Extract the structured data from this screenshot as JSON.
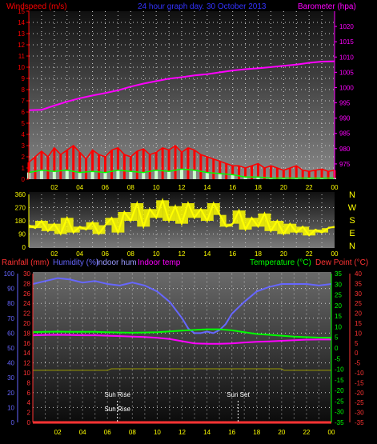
{
  "header": {
    "windspeed_label": "Windspeed (m/s)",
    "date_label": "24 hour graph day. 30 October 2013",
    "barometer_label": "Barometer (hpa)"
  },
  "colors": {
    "wind_red": "#ff0000",
    "gust": "#00ff00",
    "wind_light": "#ccffcc",
    "baro": "#ff00ff",
    "direction": "#ffff00",
    "rain": "#ff3333",
    "humidity": "#6666ff",
    "indoor_hum": "#9999ff",
    "indoor_temp": "#ff00ff",
    "temperature": "#00ff00",
    "dewpoint": "#ff3333",
    "axis_text": "#ffff00",
    "sun": "#ffffff"
  },
  "chart_data": [
    {
      "type": "line",
      "name": "wind-barometer",
      "x_ticks": [
        "02",
        "04",
        "06",
        "08",
        "10",
        "12",
        "14",
        "16",
        "18",
        "20",
        "22",
        "00"
      ],
      "left_axis": {
        "label": "Windspeed (m/s)",
        "ylim": [
          0,
          15
        ],
        "ticks": [
          "0",
          "1",
          "2",
          "3",
          "4",
          "5",
          "6",
          "7",
          "8",
          "9",
          "10",
          "11",
          "12",
          "13",
          "14",
          "15"
        ]
      },
      "right_axis": {
        "label": "Barometer (hpa)",
        "ylim": [
          970,
          1025
        ],
        "ticks": [
          "975",
          "980",
          "985",
          "990",
          "995",
          "1000",
          "1005",
          "1010",
          "1015",
          "1020"
        ]
      },
      "grid": true,
      "series": [
        {
          "name": "Barometer (hpa)",
          "axis": "right",
          "x": [
            0,
            1,
            2,
            3,
            4,
            5,
            6,
            7,
            8,
            9,
            10,
            11,
            12,
            13,
            14,
            15,
            16,
            17,
            18,
            19,
            20,
            21,
            22,
            23,
            24
          ],
          "values": [
            992.6,
            992.7,
            994.1,
            995.4,
            996.5,
            997.4,
            998.2,
            999.1,
            1000.3,
            1001.3,
            1002.1,
            1002.9,
            1003.4,
            1004.0,
            1004.4,
            1005.0,
            1005.6,
            1006.0,
            1006.3,
            1006.7,
            1007.1,
            1007.5,
            1008.1,
            1008.5,
            1008.6
          ]
        },
        {
          "name": "Windspeed (m/s)",
          "axis": "left",
          "x": [
            0.0,
            0.5,
            1.0,
            1.5,
            2.0,
            2.5,
            3.0,
            3.5,
            4.0,
            4.5,
            5.0,
            5.5,
            6.0,
            6.5,
            7.0,
            7.5,
            8.0,
            8.5,
            9.0,
            9.5,
            10.0,
            10.5,
            11.0,
            11.5,
            12.0,
            12.5,
            13.0,
            13.5,
            14.0,
            14.5,
            15.0,
            15.5,
            16.0,
            16.5,
            17.0,
            17.5,
            18.0,
            18.5,
            19.0,
            19.5,
            20.0,
            20.5,
            21.0,
            21.5,
            22.0,
            22.5,
            23.0,
            23.5,
            24.0
          ],
          "values": [
            1.5,
            2.0,
            2.5,
            2.0,
            2.8,
            2.2,
            2.6,
            3.0,
            2.4,
            1.8,
            2.6,
            2.2,
            2.0,
            2.6,
            2.8,
            2.2,
            2.0,
            2.5,
            2.7,
            2.2,
            2.4,
            2.8,
            2.6,
            3.0,
            2.4,
            2.8,
            2.6,
            2.2,
            2.0,
            1.8,
            1.6,
            1.4,
            1.2,
            1.2,
            1.0,
            1.2,
            1.4,
            1.0,
            1.2,
            1.0,
            0.8,
            1.0,
            1.2,
            0.8,
            0.7,
            0.8,
            0.9,
            0.7,
            0.8
          ]
        },
        {
          "name": "Gust",
          "axis": "left",
          "x": [
            0.0,
            1.0,
            2.0,
            3.0,
            4.0,
            5.0,
            6.0,
            7.0,
            8.0,
            9.0,
            10.0,
            11.0,
            12.0,
            13.0,
            14.0,
            15.0,
            16.0,
            17.0,
            18.0,
            19.0,
            20.0,
            21.0,
            22.0,
            23.0,
            24.0
          ],
          "values": [
            0.6,
            0.8,
            0.7,
            0.8,
            0.6,
            0.7,
            0.6,
            0.8,
            0.7,
            0.6,
            0.8,
            0.7,
            0.9,
            0.8,
            0.6,
            0.5,
            0.4,
            0.2,
            0.2,
            0.1,
            0.1,
            0.1,
            0.1,
            0.1,
            0.1
          ]
        }
      ]
    },
    {
      "type": "scatter",
      "name": "wind-direction",
      "x_ticks": [
        "02",
        "04",
        "06",
        "08",
        "10",
        "12",
        "14",
        "16",
        "18",
        "20",
        "22",
        "00"
      ],
      "left_axis": {
        "ylim": [
          0,
          360
        ],
        "ticks": [
          "0",
          "90",
          "180",
          "270",
          "360"
        ]
      },
      "right_axis": {
        "ticks": [
          "N",
          "W",
          "S",
          "E",
          "N"
        ]
      },
      "grid": true,
      "series": [
        {
          "name": "Wind direction",
          "x": [
            0.0,
            0.5,
            1.0,
            1.5,
            2.0,
            2.5,
            3.0,
            3.5,
            4.0,
            4.5,
            5.0,
            5.5,
            6.0,
            6.5,
            7.0,
            7.5,
            8.0,
            8.5,
            9.0,
            9.5,
            10.0,
            10.5,
            11.0,
            11.5,
            12.0,
            12.5,
            13.0,
            13.5,
            14.0,
            14.5,
            15.0,
            15.5,
            16.0,
            16.5,
            17.0,
            17.5,
            18.0,
            18.5,
            19.0,
            19.5,
            20.0,
            20.5,
            21.0,
            21.5,
            22.0,
            22.5,
            23.0,
            23.5,
            24.0
          ],
          "values": [
            150,
            130,
            180,
            110,
            160,
            90,
            200,
            100,
            140,
            120,
            170,
            90,
            150,
            200,
            100,
            240,
            180,
            300,
            140,
            260,
            200,
            320,
            180,
            280,
            160,
            300,
            200,
            260,
            180,
            300,
            220,
            140,
            160,
            250,
            120,
            200,
            140,
            230,
            110,
            180,
            90,
            160,
            100,
            140,
            80,
            120,
            100,
            130,
            140
          ]
        }
      ]
    },
    {
      "type": "line",
      "name": "temperature-humidity",
      "x_ticks": [
        "02",
        "04",
        "06",
        "08",
        "10",
        "12",
        "14",
        "16",
        "18",
        "20",
        "22",
        "00"
      ],
      "left_axis_humidity": {
        "label": "Humidity (%)",
        "ticks": [
          "0",
          "10",
          "20",
          "30",
          "40",
          "50",
          "60",
          "70",
          "80",
          "90",
          "100"
        ]
      },
      "left_axis_rain": {
        "label": "Rainfall (mm)",
        "ticks": [
          "0",
          "2",
          "4",
          "6",
          "8",
          "10",
          "12",
          "14",
          "16",
          "18",
          "20",
          "22",
          "24",
          "26",
          "28",
          "30"
        ]
      },
      "right_axis_temp": {
        "label": "Temperature (°C)",
        "ylim": [
          -35,
          35
        ],
        "ticks": [
          "35",
          "30",
          "25",
          "20",
          "15",
          "10",
          "5",
          "0",
          "-5",
          "-10",
          "-15",
          "-20",
          "-25",
          "-30",
          "-35"
        ]
      },
      "right_axis_dew": {
        "label": "Dew Point (°C)",
        "ticks": [
          "40",
          "35",
          "30",
          "25",
          "20",
          "15",
          "10",
          "5",
          "0",
          "-5",
          "-10",
          "-15",
          "-20",
          "-25",
          "-30",
          "-35"
        ]
      },
      "legend": [
        "Rainfall (mm)",
        "Humidity (%)",
        "Indoor hum",
        "Indoor temp",
        "Temperature (°C)",
        "Dew Point (°C)"
      ],
      "annotations": [
        "Sun Rise",
        "Sun Set",
        "Sun Rise"
      ],
      "grid": true,
      "series": [
        {
          "name": "Humidity (%)",
          "axis": "humidity",
          "x": [
            0,
            1,
            2,
            3,
            4,
            5,
            6,
            7,
            8,
            9,
            10,
            11,
            12,
            12.5,
            13,
            13.5,
            14,
            14.5,
            15,
            15.5,
            16,
            17,
            18,
            19,
            20,
            21,
            22,
            23,
            24
          ],
          "values": [
            93,
            95,
            97,
            96,
            94,
            95,
            93,
            92,
            94,
            92,
            88,
            81,
            70,
            63,
            60,
            60,
            61,
            60,
            62,
            66,
            73,
            81,
            88,
            91,
            93,
            93,
            93,
            92,
            93
          ]
        },
        {
          "name": "Temperature (°C)",
          "axis": "temp",
          "x": [
            0,
            1,
            2,
            3,
            4,
            5,
            6,
            7,
            8,
            9,
            10,
            11,
            12,
            13,
            14,
            15,
            16,
            17,
            18,
            19,
            20,
            21,
            22,
            23,
            24
          ],
          "values": [
            7.5,
            7.6,
            7.7,
            7.6,
            7.6,
            7.6,
            7.4,
            7.3,
            7.2,
            7.3,
            7.4,
            7.8,
            8.2,
            8.5,
            8.8,
            8.8,
            8.3,
            7.4,
            6.6,
            6.2,
            5.8,
            5.4,
            5.1,
            4.9,
            4.8
          ]
        },
        {
          "name": "Indoor temp",
          "axis": "temp",
          "x": [
            0,
            1,
            2,
            3,
            4,
            5,
            6,
            7,
            8,
            9,
            10,
            11,
            12,
            13,
            14,
            15,
            16,
            17,
            18,
            19,
            20,
            21,
            22,
            23,
            24
          ],
          "values": [
            6.0,
            6.1,
            6.2,
            6.1,
            6.0,
            6.0,
            5.8,
            5.6,
            5.4,
            5.2,
            4.8,
            4.2,
            3.2,
            2.2,
            2.0,
            2.0,
            2.2,
            2.6,
            2.9,
            3.1,
            3.4,
            3.7,
            3.9,
            4.0,
            4.0
          ]
        },
        {
          "name": "Indoor hum",
          "axis": "humidity",
          "x": [
            0,
            2,
            4,
            6,
            6.3,
            8,
            10,
            12,
            14,
            16,
            18,
            20,
            20.2,
            22,
            24
          ],
          "values": [
            35,
            35,
            35,
            35,
            36,
            36,
            36,
            36,
            36,
            36,
            36,
            36,
            35,
            35,
            35
          ]
        },
        {
          "name": "Rainfall (mm)",
          "axis": "rain",
          "x": [
            0,
            24
          ],
          "values": [
            0,
            0
          ]
        }
      ]
    }
  ]
}
